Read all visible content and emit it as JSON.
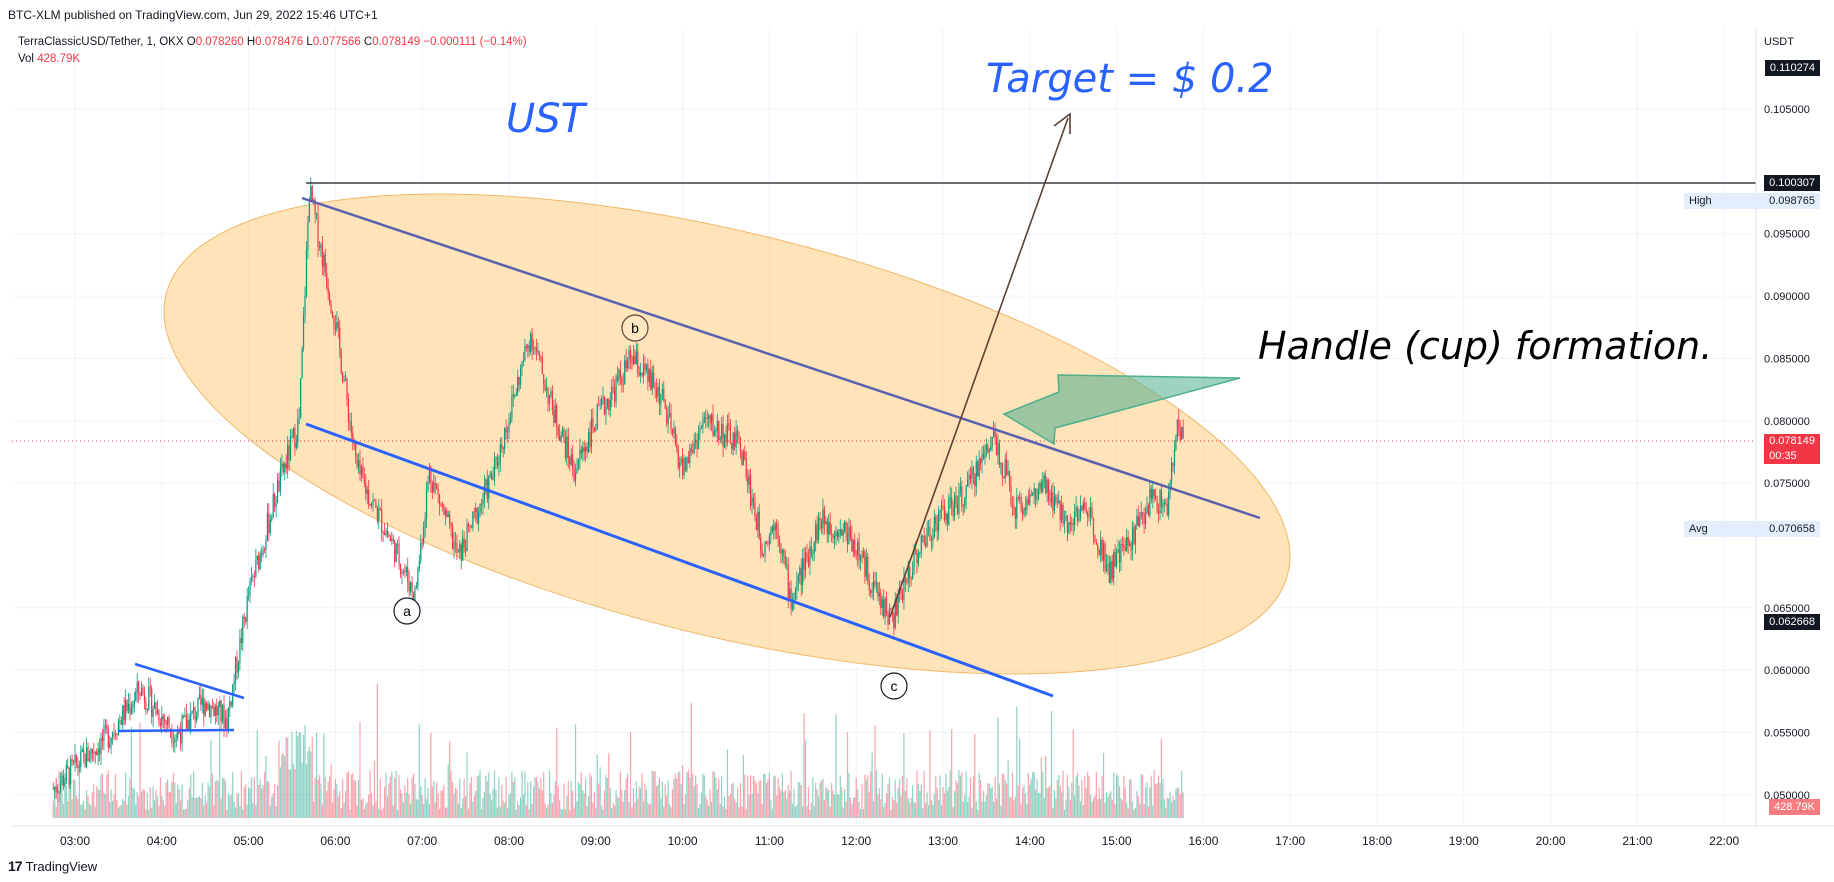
{
  "header": {
    "published": "BTC-XLM published on TradingView.com, Jun 29, 2022 15:46 UTC+1"
  },
  "legend": {
    "symbol": "TerraClassicUSD/Tether, 1, OKX",
    "o_label": "O",
    "o": "0.078260",
    "h_label": "H",
    "h": "0.078476",
    "l_label": "L",
    "l": "0.077566",
    "c_label": "C",
    "c": "0.078149",
    "change": "−0.000111 (−0.14%)",
    "vol_label": "Vol",
    "vol": "428.79K"
  },
  "annotations": {
    "target": "Target = $ 0.2",
    "ust": "UST",
    "handle": "Handle (cup) formation.",
    "wave_a": "a",
    "wave_b": "b",
    "wave_c": "c"
  },
  "price_axis": {
    "unit": "USDT",
    "ticks": [
      "0.105000",
      "0.095000",
      "0.090000",
      "0.085000",
      "0.080000",
      "0.075000",
      "0.065000",
      "0.060000",
      "0.055000",
      "0.050000"
    ],
    "tags": {
      "top": "0.110274",
      "level": "0.100307",
      "high_label": "High",
      "high": "0.098765",
      "last": "0.078149",
      "countdown": "00:35",
      "avg_label": "Avg",
      "avg": "0.070658",
      "low": "0.062668",
      "volume": "428.79K"
    }
  },
  "time_axis": {
    "ticks": [
      "03:00",
      "04:00",
      "05:00",
      "06:00",
      "07:00",
      "08:00",
      "09:00",
      "10:00",
      "11:00",
      "12:00",
      "13:00",
      "14:00",
      "15:00",
      "16:00",
      "17:00",
      "18:00",
      "19:00",
      "20:00",
      "21:00",
      "22:00"
    ]
  },
  "footer": {
    "logo": "17",
    "brand": "TradingView"
  },
  "colors": {
    "up": "#089981",
    "down": "#f23645",
    "ellipse": "#ffcc80",
    "channel_upper": "#5b5fb0",
    "channel_lower": "#2962ff",
    "arrow_fill": "#4caf8c",
    "annotation_blue": "#2962ff"
  },
  "chart_data": {
    "type": "candlestick",
    "symbol": "TerraClassicUSD/Tether",
    "interval": "1",
    "exchange": "OKX",
    "ylim": [
      0.0475,
      0.1115
    ],
    "x_range": [
      "02:40",
      "22:20"
    ],
    "key_points": [
      {
        "time": "02:45",
        "close": 0.0505
      },
      {
        "time": "03:25",
        "close": 0.055
      },
      {
        "time": "03:45",
        "close": 0.0585
      },
      {
        "time": "04:10",
        "close": 0.0548
      },
      {
        "time": "04:30",
        "close": 0.0575
      },
      {
        "time": "04:45",
        "close": 0.056
      },
      {
        "time": "05:00",
        "close": 0.066
      },
      {
        "time": "05:20",
        "close": 0.0745
      },
      {
        "time": "05:35",
        "close": 0.08
      },
      {
        "time": "05:42",
        "close": 0.0985
      },
      {
        "time": "06:00",
        "close": 0.088
      },
      {
        "time": "06:15",
        "close": 0.076
      },
      {
        "time": "06:40",
        "close": 0.07
      },
      {
        "time": "06:55",
        "close": 0.066
      },
      {
        "time": "07:05",
        "close": 0.076
      },
      {
        "time": "07:25",
        "close": 0.069
      },
      {
        "time": "07:50",
        "close": 0.076
      },
      {
        "time": "08:15",
        "close": 0.087
      },
      {
        "time": "08:30",
        "close": 0.081
      },
      {
        "time": "08:45",
        "close": 0.076
      },
      {
        "time": "09:00",
        "close": 0.08
      },
      {
        "time": "09:25",
        "close": 0.085
      },
      {
        "time": "09:45",
        "close": 0.082
      },
      {
        "time": "10:00",
        "close": 0.076
      },
      {
        "time": "10:15",
        "close": 0.08
      },
      {
        "time": "10:40",
        "close": 0.078
      },
      {
        "time": "10:55",
        "close": 0.07
      },
      {
        "time": "11:05",
        "close": 0.072
      },
      {
        "time": "11:15",
        "close": 0.0655
      },
      {
        "time": "11:35",
        "close": 0.072
      },
      {
        "time": "11:55",
        "close": 0.071
      },
      {
        "time": "12:15",
        "close": 0.066
      },
      {
        "time": "12:25",
        "close": 0.064
      },
      {
        "time": "12:40",
        "close": 0.069
      },
      {
        "time": "12:55",
        "close": 0.072
      },
      {
        "time": "13:15",
        "close": 0.074
      },
      {
        "time": "13:35",
        "close": 0.079
      },
      {
        "time": "13:50",
        "close": 0.073
      },
      {
        "time": "14:10",
        "close": 0.0745
      },
      {
        "time": "14:25",
        "close": 0.072
      },
      {
        "time": "14:40",
        "close": 0.073
      },
      {
        "time": "14:55",
        "close": 0.068
      },
      {
        "time": "15:10",
        "close": 0.0705
      },
      {
        "time": "15:25",
        "close": 0.074
      },
      {
        "time": "15:35",
        "close": 0.073
      },
      {
        "time": "15:42",
        "close": 0.0795
      },
      {
        "time": "15:46",
        "close": 0.0781
      }
    ],
    "levels": {
      "top_level": 0.100307,
      "high": 0.098765,
      "last": 0.078149,
      "avg": 0.070658,
      "low": 0.062668
    }
  }
}
